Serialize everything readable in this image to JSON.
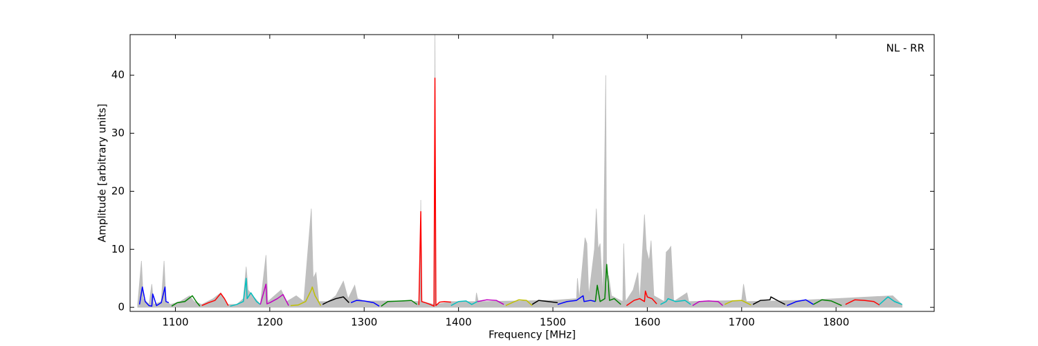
{
  "chart_data": {
    "type": "line",
    "xlabel": "Frequency [MHz]",
    "ylabel": "Amplitude [arbitrary units]",
    "annotation": "NL - RR",
    "xlim": [
      1052,
      1904
    ],
    "ylim": [
      -0.7,
      47
    ],
    "xticks": [
      1100,
      1200,
      1300,
      1400,
      1500,
      1600,
      1700,
      1800
    ],
    "yticks": [
      0,
      10,
      20,
      30,
      40
    ],
    "series": [
      {
        "color": "#bfbfbf",
        "fill": true,
        "x": [
          1060,
          1064,
          1066,
          1072,
          1075,
          1077,
          1085,
          1088,
          1090,
          1095,
          1105,
          1115,
          1120,
          1128,
          1140,
          1148,
          1155,
          1165,
          1172,
          1175,
          1177,
          1182,
          1190,
          1196,
          1198,
          1205,
          1212,
          1218,
          1228,
          1236,
          1244,
          1246,
          1249,
          1252,
          1262,
          1270,
          1278,
          1283,
          1290,
          1293,
          1300,
          1330,
          1359,
          1360,
          1361,
          1374,
          1375,
          1376,
          1392,
          1418,
          1419,
          1421,
          1500,
          1525,
          1526,
          1528,
          1534,
          1536,
          1538,
          1544,
          1546,
          1548,
          1550,
          1553,
          1556,
          1557,
          1559,
          1562,
          1574,
          1575,
          1577,
          1585,
          1590,
          1592,
          1597,
          1599,
          1602,
          1604,
          1607,
          1618,
          1620,
          1623,
          1625,
          1628,
          1642,
          1644,
          1700,
          1702,
          1705,
          1760,
          1800,
          1860,
          1870
        ],
        "values": [
          0.5,
          8,
          1.5,
          0.5,
          4,
          0.5,
          1,
          8,
          1,
          0.5,
          1,
          2,
          1,
          0.5,
          1.5,
          2.5,
          0.5,
          0.5,
          1.5,
          7,
          3,
          2,
          0.5,
          9,
          1,
          2,
          3,
          1,
          2,
          1,
          17,
          5,
          6,
          1,
          1,
          2,
          4.5,
          1.5,
          3.8,
          1.5,
          1.1,
          1.1,
          1,
          18.5,
          1,
          0.5,
          48,
          0.5,
          1,
          1,
          2.5,
          1,
          1.2,
          1.5,
          5,
          1.5,
          12,
          11,
          2,
          10,
          17,
          10,
          11,
          2,
          40,
          2,
          5.5,
          2,
          1,
          11,
          1,
          3,
          6,
          1,
          16,
          10,
          8,
          11.5,
          2,
          1,
          9.5,
          10,
          10.5,
          1,
          2.5,
          1,
          1.2,
          4,
          1,
          1.2,
          1.5,
          2,
          0.5
        ]
      },
      {
        "color": "#0000ff",
        "x": [
          1062,
          1065,
          1068,
          1072,
          1075,
          1076,
          1080,
          1085,
          1089,
          1090,
          1093
        ],
        "values": [
          0.5,
          3.5,
          1.0,
          0.3,
          0.2,
          2.3,
          0.3,
          0.8,
          3.5,
          1.0,
          0.8
        ]
      },
      {
        "color": "#008000",
        "x": [
          1096,
          1102,
          1110,
          1118,
          1122,
          1126
        ],
        "values": [
          0.2,
          0.8,
          1.0,
          2.0,
          1.0,
          0.2
        ]
      },
      {
        "color": "#ff0000",
        "x": [
          1128,
          1135,
          1142,
          1148,
          1152,
          1156
        ],
        "values": [
          0.3,
          0.8,
          1.2,
          2.4,
          1.5,
          0.3
        ]
      },
      {
        "color": "#00bfbf",
        "x": [
          1158,
          1165,
          1172,
          1175,
          1176,
          1180,
          1186,
          1190
        ],
        "values": [
          0.2,
          0.5,
          1.0,
          5.0,
          1.5,
          2.5,
          1.0,
          0.5
        ]
      },
      {
        "color": "#bf00bf",
        "x": [
          1190,
          1196,
          1197,
          1200,
          1208,
          1214,
          1220
        ],
        "values": [
          0.5,
          4.0,
          0.6,
          0.8,
          1.5,
          2.2,
          0.3
        ]
      },
      {
        "color": "#bfbf00",
        "x": [
          1222,
          1230,
          1238,
          1244,
          1245,
          1248,
          1254
        ],
        "values": [
          0.3,
          0.4,
          1.0,
          3.0,
          3.5,
          2.0,
          0.3
        ]
      },
      {
        "color": "#000000",
        "x": [
          1256,
          1262,
          1270,
          1278,
          1284
        ],
        "values": [
          0.5,
          1.0,
          1.5,
          1.8,
          0.8
        ]
      },
      {
        "color": "#0000ff",
        "x": [
          1286,
          1292,
          1300,
          1310,
          1316
        ],
        "values": [
          0.8,
          1.2,
          1.1,
          0.8,
          0.2
        ]
      },
      {
        "color": "#008000",
        "x": [
          1318,
          1325,
          1340,
          1350,
          1356
        ],
        "values": [
          0.2,
          1.0,
          1.1,
          1.2,
          0.5
        ]
      },
      {
        "color": "#ff0000",
        "x": [
          1358,
          1360,
          1361,
          1365,
          1370,
          1374,
          1375,
          1376,
          1380,
          1385,
          1392
        ],
        "values": [
          0.4,
          16.5,
          1.0,
          0.8,
          0.5,
          0.2,
          39.5,
          0.3,
          0.9,
          1.0,
          0.9
        ]
      },
      {
        "color": "#00bfbf",
        "x": [
          1392,
          1400,
          1408,
          1414,
          1420
        ],
        "values": [
          0.3,
          1.0,
          1.1,
          0.5,
          1.0
        ]
      },
      {
        "color": "#bf00bf",
        "x": [
          1420,
          1430,
          1440,
          1448
        ],
        "values": [
          1.0,
          1.3,
          1.2,
          0.5
        ]
      },
      {
        "color": "#bfbf00",
        "x": [
          1450,
          1458,
          1464,
          1472,
          1478
        ],
        "values": [
          0.3,
          0.9,
          1.3,
          1.2,
          0.3
        ]
      },
      {
        "color": "#000000",
        "x": [
          1478,
          1485,
          1495,
          1505
        ],
        "values": [
          0.5,
          1.2,
          1.0,
          0.8
        ]
      },
      {
        "color": "#0000ff",
        "x": [
          1505,
          1515,
          1525,
          1532,
          1533,
          1540,
          1545
        ],
        "values": [
          0.5,
          1.0,
          1.2,
          2.0,
          1.0,
          1.2,
          1.0
        ]
      },
      {
        "color": "#008000",
        "x": [
          1545,
          1547,
          1550,
          1555,
          1557,
          1560,
          1565,
          1572
        ],
        "values": [
          1.0,
          3.8,
          1.0,
          1.5,
          7.4,
          1.2,
          1.5,
          0.5
        ]
      },
      {
        "color": "#ff0000",
        "x": [
          1578,
          1586,
          1592,
          1597,
          1598,
          1600,
          1605,
          1610
        ],
        "values": [
          0.3,
          1.2,
          1.5,
          1.0,
          2.8,
          1.8,
          1.5,
          0.6
        ]
      },
      {
        "color": "#00bfbf",
        "x": [
          1614,
          1620,
          1622,
          1630,
          1640,
          1646
        ],
        "values": [
          0.5,
          1.0,
          1.5,
          1.0,
          1.2,
          0.5
        ]
      },
      {
        "color": "#bf00bf",
        "x": [
          1648,
          1655,
          1665,
          1675,
          1680
        ],
        "values": [
          0.3,
          1.0,
          1.1,
          1.0,
          0.3
        ]
      },
      {
        "color": "#bfbf00",
        "x": [
          1682,
          1690,
          1700,
          1710
        ],
        "values": [
          0.5,
          1.1,
          1.2,
          0.4
        ]
      },
      {
        "color": "#000000",
        "x": [
          1712,
          1720,
          1730,
          1731,
          1740,
          1746
        ],
        "values": [
          0.5,
          1.2,
          1.3,
          1.8,
          1.0,
          0.5
        ]
      },
      {
        "color": "#0000ff",
        "x": [
          1748,
          1758,
          1768,
          1776
        ],
        "values": [
          0.3,
          1.0,
          1.3,
          0.5
        ]
      },
      {
        "color": "#008000",
        "x": [
          1776,
          1785,
          1795,
          1806
        ],
        "values": [
          0.5,
          1.3,
          1.1,
          0.3
        ]
      },
      {
        "color": "#ff0000",
        "x": [
          1810,
          1820,
          1830,
          1840,
          1846
        ],
        "values": [
          0.5,
          1.3,
          1.2,
          1.0,
          0.4
        ]
      },
      {
        "color": "#00bfbf",
        "x": [
          1846,
          1855,
          1862,
          1870
        ],
        "values": [
          0.5,
          1.8,
          1.0,
          0.5
        ]
      }
    ]
  }
}
